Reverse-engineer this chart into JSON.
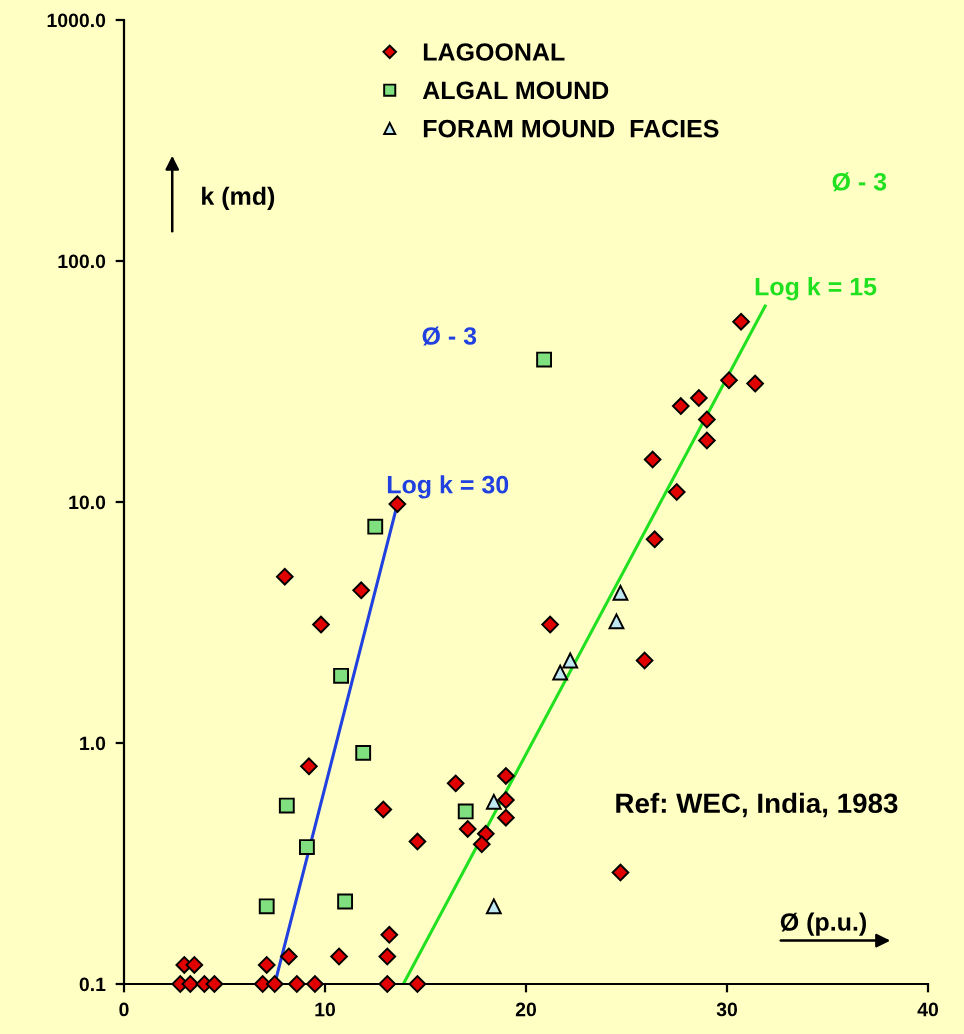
{
  "chart_data": {
    "type": "scatter",
    "xlabel": "Ø (p.u.)",
    "ylabel": "k (md)",
    "log": "y",
    "grid": false,
    "legend": "top",
    "xlim": [
      0,
      40
    ],
    "ylim": [
      0.1,
      1000
    ],
    "xticks": [
      0,
      10,
      20,
      30,
      40
    ],
    "yticks": [
      {
        "value": 0.1,
        "label": "0.1"
      },
      {
        "value": 1,
        "label": "1.0"
      },
      {
        "value": 10,
        "label": "10.0"
      },
      {
        "value": 100,
        "label": "100.0"
      },
      {
        "value": 1000,
        "label": "1000.0"
      }
    ],
    "series": [
      {
        "name": "LAGOONAL",
        "marker": "diamond",
        "color": "#e00000",
        "x": [
          13.6,
          8.0,
          11.8,
          9.8,
          9.2,
          12.9,
          14.6,
          13.2,
          8.2,
          10.7,
          13.1,
          7.1,
          3.0,
          3.5,
          2.8,
          3.3,
          4.0,
          4.5,
          6.9,
          7.5,
          8.6,
          9.5,
          13.1,
          14.6,
          21.2,
          30.7,
          31.4,
          30.1,
          27.7,
          28.6,
          29.0,
          29.0,
          26.3,
          27.5,
          26.4,
          25.9,
          19.0,
          16.5,
          19.0,
          19.0,
          17.1,
          18.0,
          17.8,
          24.7
        ],
        "values": [
          9.8,
          4.9,
          4.3,
          3.1,
          0.8,
          0.53,
          0.39,
          0.16,
          0.13,
          0.13,
          0.13,
          0.12,
          0.12,
          0.12,
          0.1,
          0.1,
          0.1,
          0.1,
          0.1,
          0.1,
          0.1,
          0.1,
          0.1,
          0.1,
          3.1,
          56,
          31,
          32,
          25,
          27,
          22,
          18,
          15,
          11,
          7.0,
          2.2,
          0.73,
          0.68,
          0.58,
          0.49,
          0.44,
          0.42,
          0.38,
          0.29
        ]
      },
      {
        "name": "ALGAL MOUND",
        "marker": "square",
        "color": "#80e080",
        "x": [
          12.5,
          10.8,
          11.9,
          8.1,
          9.1,
          7.1,
          11.0,
          20.9,
          17.0
        ],
        "values": [
          7.9,
          1.9,
          0.91,
          0.55,
          0.37,
          0.21,
          0.22,
          39,
          0.52
        ]
      },
      {
        "name": "FORAM MOUND  FACIES",
        "marker": "triangle",
        "color": "#c0e8f0",
        "x": [
          24.7,
          24.5,
          22.2,
          21.7,
          18.4,
          18.4
        ],
        "values": [
          4.2,
          3.2,
          2.2,
          1.96,
          0.57,
          0.21
        ]
      },
      {
        "type": "line",
        "marker": "none",
        "color": "#2040e0",
        "x": [
          7.5,
          13.6
        ],
        "values": [
          0.1,
          9.8
        ]
      },
      {
        "type": "line",
        "marker": "none",
        "color": "#20e020",
        "x": [
          13.9,
          31.9
        ],
        "values": [
          0.1,
          65
        ]
      }
    ],
    "annotations": [
      {
        "text": "Log k = 30",
        "x": 13.6,
        "y": 9.8
      },
      {
        "text": "Log k = 15",
        "x": 31.9,
        "y": 65
      },
      "Ø - 3",
      "Ø - 3",
      "Ref: WEC, India, 1983"
    ]
  }
}
